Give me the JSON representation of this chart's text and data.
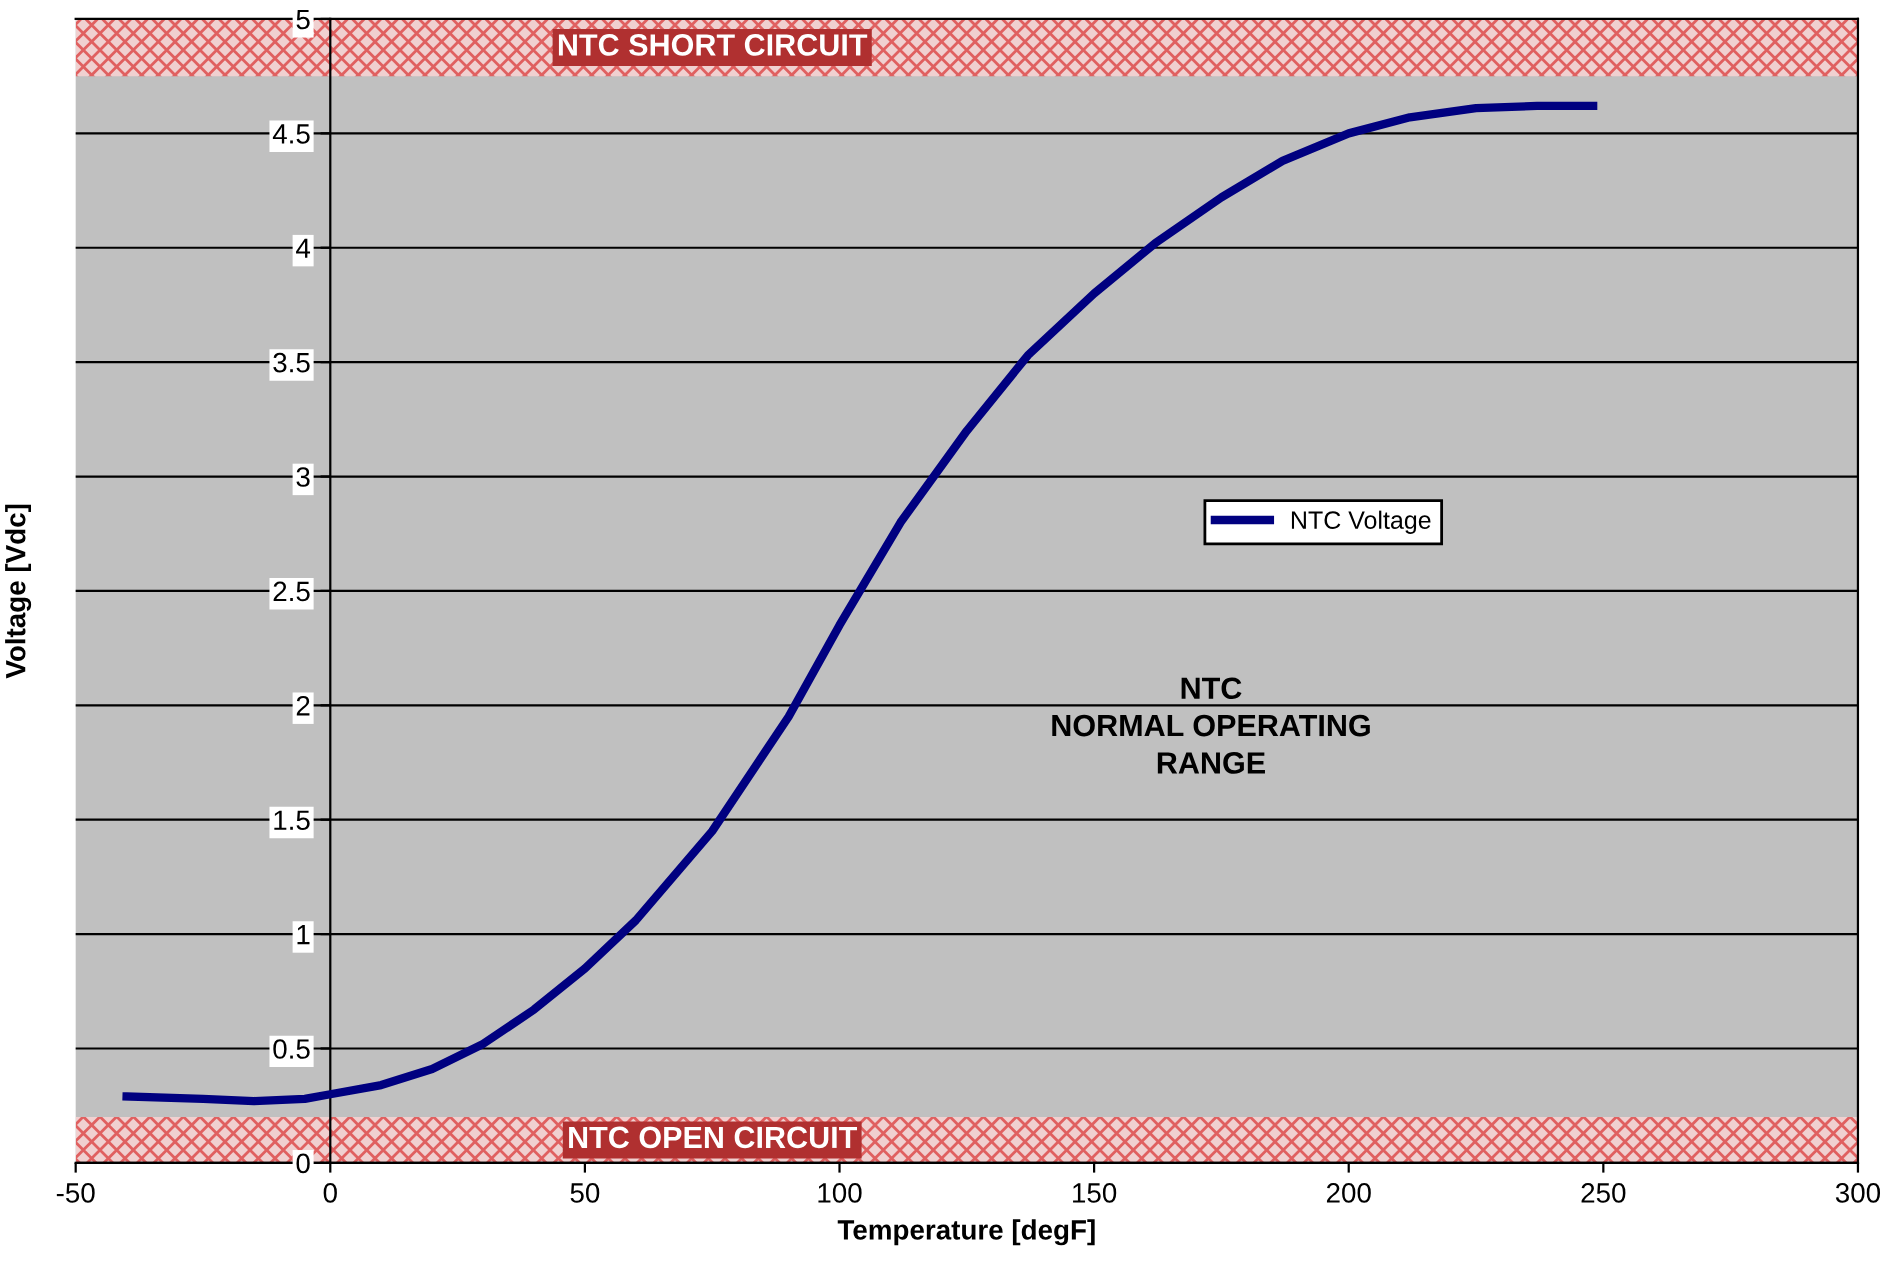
{
  "chart_data": {
    "type": "line",
    "xlabel": "Temperature [degF]",
    "ylabel": "Voltage [Vdc]",
    "xlim": [
      -50,
      300
    ],
    "xticks": [
      -50,
      0,
      50,
      100,
      150,
      200,
      250,
      300
    ],
    "ylim": [
      0,
      5
    ],
    "yticks": [
      0,
      0.5,
      1,
      1.5,
      2,
      2.5,
      3,
      3.5,
      4,
      4.5,
      5
    ],
    "grid": "y",
    "legend": "center right",
    "series": [
      {
        "name": "NTC Voltage",
        "color": "#000080",
        "x": [
          -40,
          -25,
          -15,
          -5,
          0,
          10,
          20,
          30,
          40,
          50,
          60,
          75,
          90,
          100,
          112,
          125,
          137,
          150,
          162,
          175,
          187,
          200,
          212,
          225,
          237,
          248
        ],
        "values": [
          0.29,
          0.28,
          0.27,
          0.28,
          0.3,
          0.34,
          0.41,
          0.52,
          0.67,
          0.85,
          1.06,
          1.45,
          1.95,
          2.35,
          2.8,
          3.2,
          3.53,
          3.8,
          4.02,
          4.22,
          4.38,
          4.5,
          4.57,
          4.61,
          4.62,
          4.62
        ]
      }
    ],
    "bands": [
      {
        "axis": "y",
        "from": 4.75,
        "to": 5,
        "label": "NTC SHORT CIRCUIT",
        "color": "#e06060"
      },
      {
        "axis": "y",
        "from": 0,
        "to": 0.2,
        "label": "NTC OPEN CIRCUIT",
        "color": "#e06060"
      }
    ],
    "annotations": [
      "NTC\nNORMAL OPERATING\nRANGE"
    ]
  }
}
